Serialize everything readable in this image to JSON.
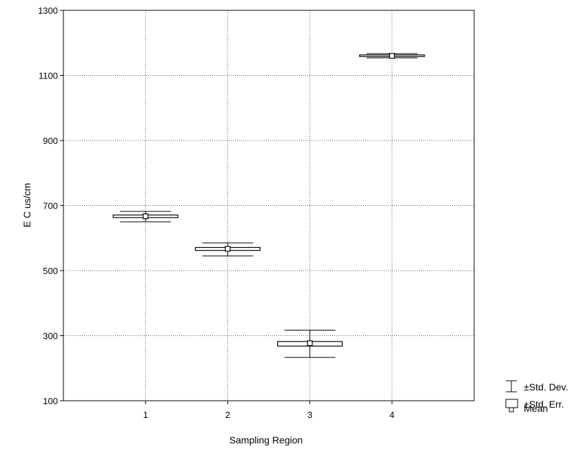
{
  "chart_data": {
    "type": "box",
    "xlabel": "Sampling Region",
    "ylabel": "E C us/cm",
    "categories": [
      "1",
      "2",
      "3",
      "4"
    ],
    "xlim": [
      0,
      5
    ],
    "ylim": [
      100,
      1300
    ],
    "yticks": [
      100,
      300,
      500,
      700,
      900,
      1100,
      1300
    ],
    "grid": true,
    "legend_position": "bottom-right",
    "series": [
      {
        "category": "1",
        "mean": 667,
        "se_low": 663,
        "se_high": 671,
        "sd_low": 650,
        "sd_high": 682
      },
      {
        "category": "2",
        "mean": 567,
        "se_low": 562,
        "se_high": 571,
        "sd_low": 545,
        "sd_high": 585
      },
      {
        "category": "3",
        "mean": 277,
        "se_low": 268,
        "se_high": 282,
        "sd_low": 233,
        "sd_high": 317
      },
      {
        "category": "4",
        "mean": 1160,
        "se_low": 1158,
        "se_high": 1163,
        "sd_low": 1154,
        "sd_high": 1167
      }
    ],
    "legend": [
      {
        "symbol": "whisker",
        "label": "±Std. Dev."
      },
      {
        "symbol": "box",
        "label": "±Std. Err."
      },
      {
        "symbol": "square",
        "label": "Mean"
      }
    ]
  }
}
